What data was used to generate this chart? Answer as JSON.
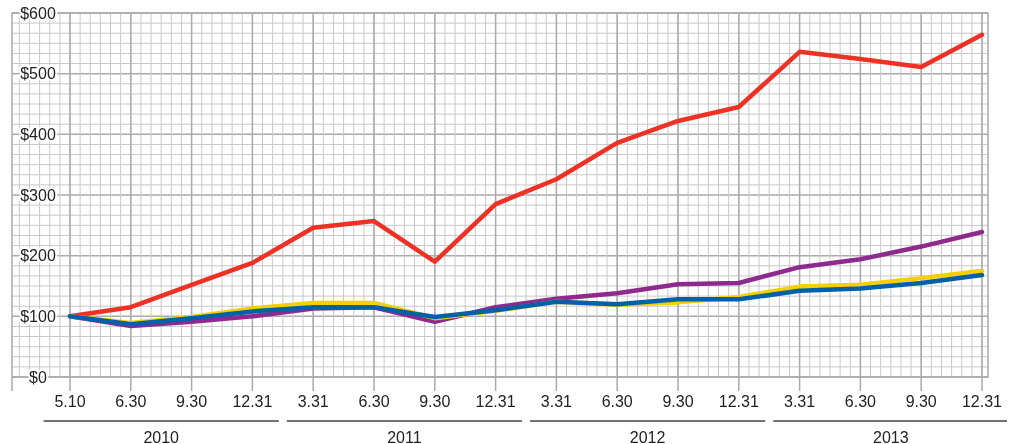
{
  "chart_data": {
    "type": "line",
    "categories": [
      "5.10",
      "6.30",
      "9.30",
      "12.31",
      "3.31",
      "6.30",
      "9.30",
      "12.31",
      "3.31",
      "6.30",
      "9.30",
      "12.31",
      "3.31",
      "6.30",
      "9.30",
      "12.31"
    ],
    "series": [
      {
        "color": "#ee3124",
        "values": [
          100,
          115,
          152,
          188,
          246,
          257,
          190,
          285,
          326,
          386,
          422,
          445,
          536,
          524,
          511,
          564
        ]
      },
      {
        "color": "#8e2a8e",
        "values": [
          100,
          84,
          91,
          100,
          113,
          115,
          91,
          115,
          129,
          138,
          153,
          155,
          181,
          194,
          215,
          239
        ]
      },
      {
        "color": "#f5d000",
        "values": [
          100,
          89,
          99,
          113,
          122,
          122,
          97,
          109,
          124,
          119,
          123,
          132,
          149,
          152,
          163,
          175
        ]
      },
      {
        "color": "#0060a8",
        "values": [
          100,
          87,
          97,
          108,
          115,
          115,
          99,
          110,
          124,
          120,
          128,
          128,
          142,
          146,
          155,
          168
        ]
      }
    ],
    "ylim": [
      0,
      600
    ],
    "yticks": [
      {
        "value": 0,
        "label": "$0"
      },
      {
        "value": 100,
        "label": "$100"
      },
      {
        "value": 200,
        "label": "$200"
      },
      {
        "value": 300,
        "label": "$300"
      },
      {
        "value": 400,
        "label": "$400"
      },
      {
        "value": 500,
        "label": "$500"
      },
      {
        "value": 600,
        "label": "$600"
      }
    ],
    "grid": true,
    "marker": "none",
    "line_style": "solid",
    "annotations": [
      "2010",
      "2011",
      "2012",
      "2013"
    ]
  }
}
